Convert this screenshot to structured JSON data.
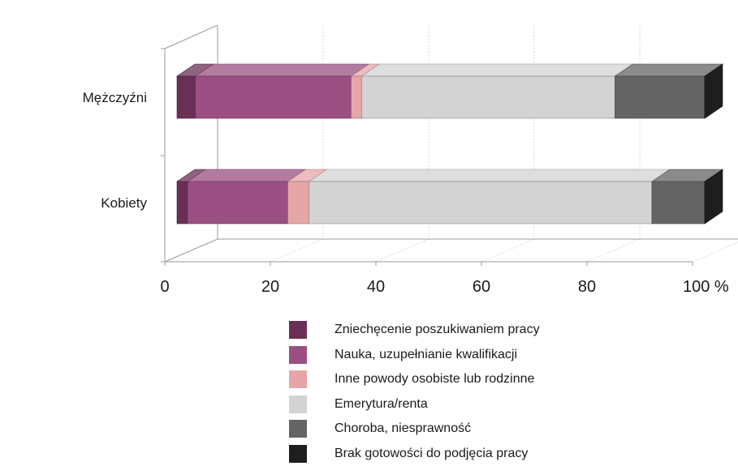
{
  "chart_data": {
    "type": "bar",
    "orientation": "horizontal",
    "stacked": true,
    "style": "3d",
    "categories": [
      "Mężczyźni",
      "Kobiety"
    ],
    "series": [
      {
        "name": "Zniechęcenie poszukiwaniem pracy",
        "color": "#6b2f55",
        "values": [
          3.5,
          2.0
        ]
      },
      {
        "name": "Nauka, uzupełnianie kwalifikacji",
        "color": "#9b4f82",
        "values": [
          29.5,
          19.0
        ]
      },
      {
        "name": "Inne powody osobiste lub rodzinne",
        "color": "#e6a6a8",
        "values": [
          2.0,
          4.0
        ]
      },
      {
        "name": "Emerytura/renta",
        "color": "#d3d3d3",
        "values": [
          48.0,
          65.0
        ]
      },
      {
        "name": "Choroba, niesprawność",
        "color": "#646464",
        "values": [
          17.0,
          10.0
        ]
      },
      {
        "name": "Brak gotowości do podjęcia pracy",
        "color": "#1e1e1e",
        "values": [
          0,
          0
        ]
      }
    ],
    "xlim": [
      0,
      100
    ],
    "xticks": [
      "0",
      "20",
      "40",
      "60",
      "80",
      "100 %"
    ],
    "grid": true,
    "legend": "bottom"
  }
}
